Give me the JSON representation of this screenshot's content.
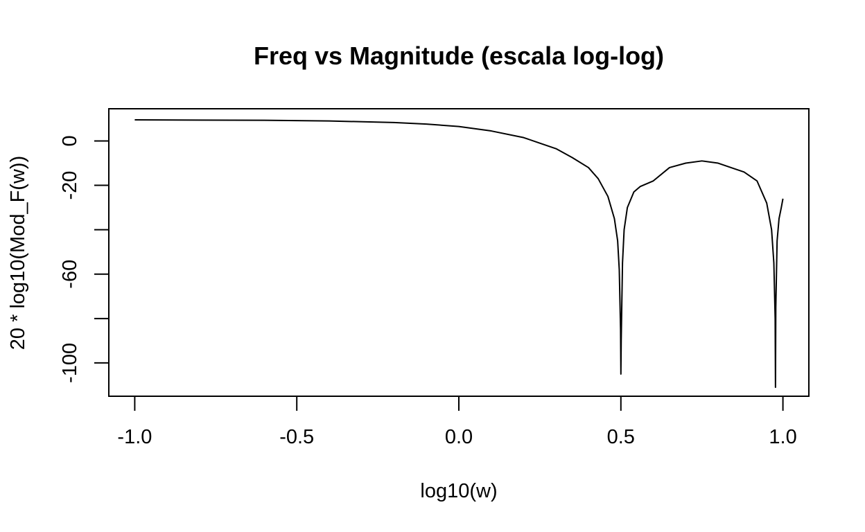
{
  "chart_data": {
    "type": "line",
    "title": "Freq vs Magnitude (escala log-log)",
    "xlabel": "log10(w)",
    "ylabel": "20 * log10(Mod_F(w))",
    "xlim": [
      -1.08,
      1.08
    ],
    "ylim": [
      -115,
      14.5
    ],
    "x_ticks": [
      -1.0,
      -0.5,
      0.0,
      0.5,
      1.0
    ],
    "x_tick_labels": [
      "-1.0",
      "-0.5",
      "0.0",
      "0.5",
      "1.0"
    ],
    "y_ticks": [
      0,
      -20,
      -40,
      -60,
      -80,
      -100
    ],
    "y_tick_labels": [
      "0",
      "-20",
      "",
      "-60",
      "",
      "-100"
    ],
    "grid": false,
    "series": [
      {
        "color": "#000000",
        "x": [
          -1.0,
          -0.8,
          -0.6,
          -0.4,
          -0.2,
          -0.1,
          0.0,
          0.1,
          0.2,
          0.25,
          0.3,
          0.35,
          0.4,
          0.43,
          0.46,
          0.48,
          0.49,
          0.495,
          0.499,
          0.5,
          0.501,
          0.505,
          0.51,
          0.52,
          0.54,
          0.56,
          0.6,
          0.65,
          0.7,
          0.75,
          0.8,
          0.85,
          0.88,
          0.92,
          0.95,
          0.965,
          0.972,
          0.976,
          0.977,
          0.978,
          0.982,
          0.988,
          0.995,
          1.0
        ],
        "y": [
          9.5,
          9.4,
          9.3,
          9.0,
          8.3,
          7.6,
          6.5,
          4.5,
          1.5,
          -1.0,
          -3.5,
          -7.5,
          -12,
          -17,
          -25,
          -35,
          -45,
          -58,
          -85,
          -105,
          -90,
          -55,
          -40,
          -30,
          -23,
          -20.5,
          -18,
          -12,
          -10,
          -9,
          -10,
          -12.5,
          -14,
          -18,
          -28,
          -40,
          -55,
          -80,
          -111,
          -75,
          -45,
          -35,
          -30,
          -26
        ]
      }
    ]
  }
}
